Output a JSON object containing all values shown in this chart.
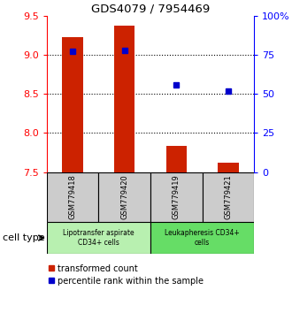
{
  "title": "GDS4079 / 7954469",
  "samples": [
    "GSM779418",
    "GSM779420",
    "GSM779419",
    "GSM779421"
  ],
  "red_values": [
    9.22,
    9.37,
    7.83,
    7.62
  ],
  "blue_values": [
    77.0,
    78.0,
    56.0,
    52.0
  ],
  "ymin": 7.5,
  "ymax": 9.5,
  "y2min": 0,
  "y2max": 100,
  "yticks": [
    7.5,
    8.0,
    8.5,
    9.0,
    9.5
  ],
  "y2ticks": [
    0,
    25,
    50,
    75,
    100
  ],
  "y2ticklabels": [
    "0",
    "25",
    "50",
    "75",
    "100%"
  ],
  "dotted_lines": [
    9.0,
    8.5,
    8.0
  ],
  "groups": [
    {
      "label": "Lipotransfer aspirate\nCD34+ cells",
      "samples": [
        0,
        1
      ],
      "color": "#b8f0b0"
    },
    {
      "label": "Leukapheresis CD34+\ncells",
      "samples": [
        2,
        3
      ],
      "color": "#66dd66"
    }
  ],
  "cell_type_label": "cell type",
  "legend_red_label": "transformed count",
  "legend_blue_label": "percentile rank within the sample",
  "bar_color": "#cc2200",
  "dot_color": "#0000cc",
  "bar_width": 0.4,
  "baseline": 7.5,
  "sample_box_color": "#cccccc",
  "bg_color": "#ffffff"
}
